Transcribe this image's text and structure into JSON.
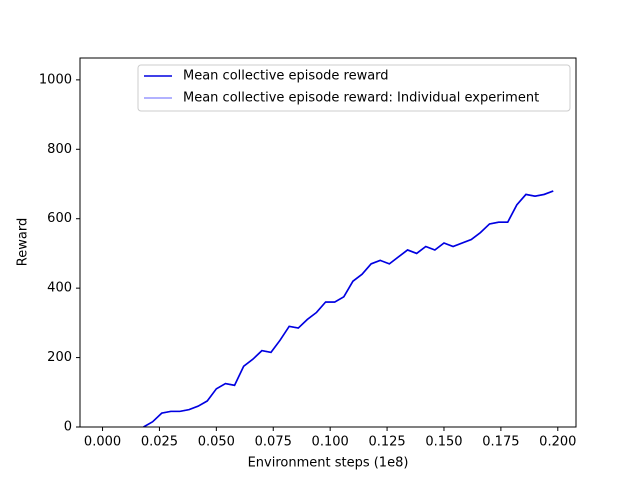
{
  "chart_data": {
    "type": "line",
    "x": [
      0.018,
      0.022,
      0.026,
      0.03,
      0.034,
      0.038,
      0.042,
      0.046,
      0.05,
      0.054,
      0.058,
      0.062,
      0.066,
      0.07,
      0.074,
      0.078,
      0.082,
      0.086,
      0.09,
      0.094,
      0.098,
      0.102,
      0.106,
      0.11,
      0.114,
      0.118,
      0.122,
      0.126,
      0.13,
      0.134,
      0.138,
      0.142,
      0.146,
      0.15,
      0.154,
      0.158,
      0.162,
      0.166,
      0.17,
      0.174,
      0.178,
      0.182,
      0.186,
      0.19,
      0.194,
      0.198
    ],
    "series": [
      {
        "name": "Mean collective episode reward",
        "color": "#0000e0",
        "values": [
          0,
          15,
          40,
          45,
          45,
          50,
          60,
          75,
          110,
          125,
          120,
          175,
          195,
          220,
          215,
          250,
          290,
          285,
          310,
          330,
          360,
          360,
          375,
          420,
          440,
          470,
          480,
          470,
          490,
          510,
          500,
          520,
          510,
          530,
          520,
          530,
          540,
          560,
          585,
          590,
          590,
          640,
          670,
          665,
          670,
          680
        ]
      },
      {
        "name": "Mean collective episode reward: Individual experiment",
        "color": "#9999ff",
        "values": [
          0,
          15,
          40,
          45,
          45,
          50,
          60,
          75,
          110,
          125,
          120,
          175,
          195,
          220,
          215,
          250,
          290,
          285,
          310,
          330,
          360,
          360,
          375,
          420,
          440,
          470,
          480,
          470,
          490,
          510,
          500,
          520,
          510,
          530,
          520,
          530,
          540,
          560,
          585,
          590,
          590,
          640,
          670,
          665,
          670,
          680
        ]
      }
    ],
    "xlabel": "Environment steps (1e8)",
    "ylabel": "Reward",
    "xlim": [
      -0.0099,
      0.208
    ],
    "ylim": [
      0,
      1063
    ],
    "xticks": [
      {
        "value": 0,
        "label": "0.000"
      },
      {
        "value": 0.025,
        "label": "0.025"
      },
      {
        "value": 0.05,
        "label": "0.050"
      },
      {
        "value": 0.075,
        "label": "0.075"
      },
      {
        "value": 0.1,
        "label": "0.100"
      },
      {
        "value": 0.125,
        "label": "0.125"
      },
      {
        "value": 0.15,
        "label": "0.150"
      },
      {
        "value": 0.175,
        "label": "0.175"
      },
      {
        "value": 0.2,
        "label": "0.200"
      }
    ],
    "yticks": [
      0,
      200,
      400,
      600,
      800,
      1000
    ],
    "legend": "upper right"
  }
}
